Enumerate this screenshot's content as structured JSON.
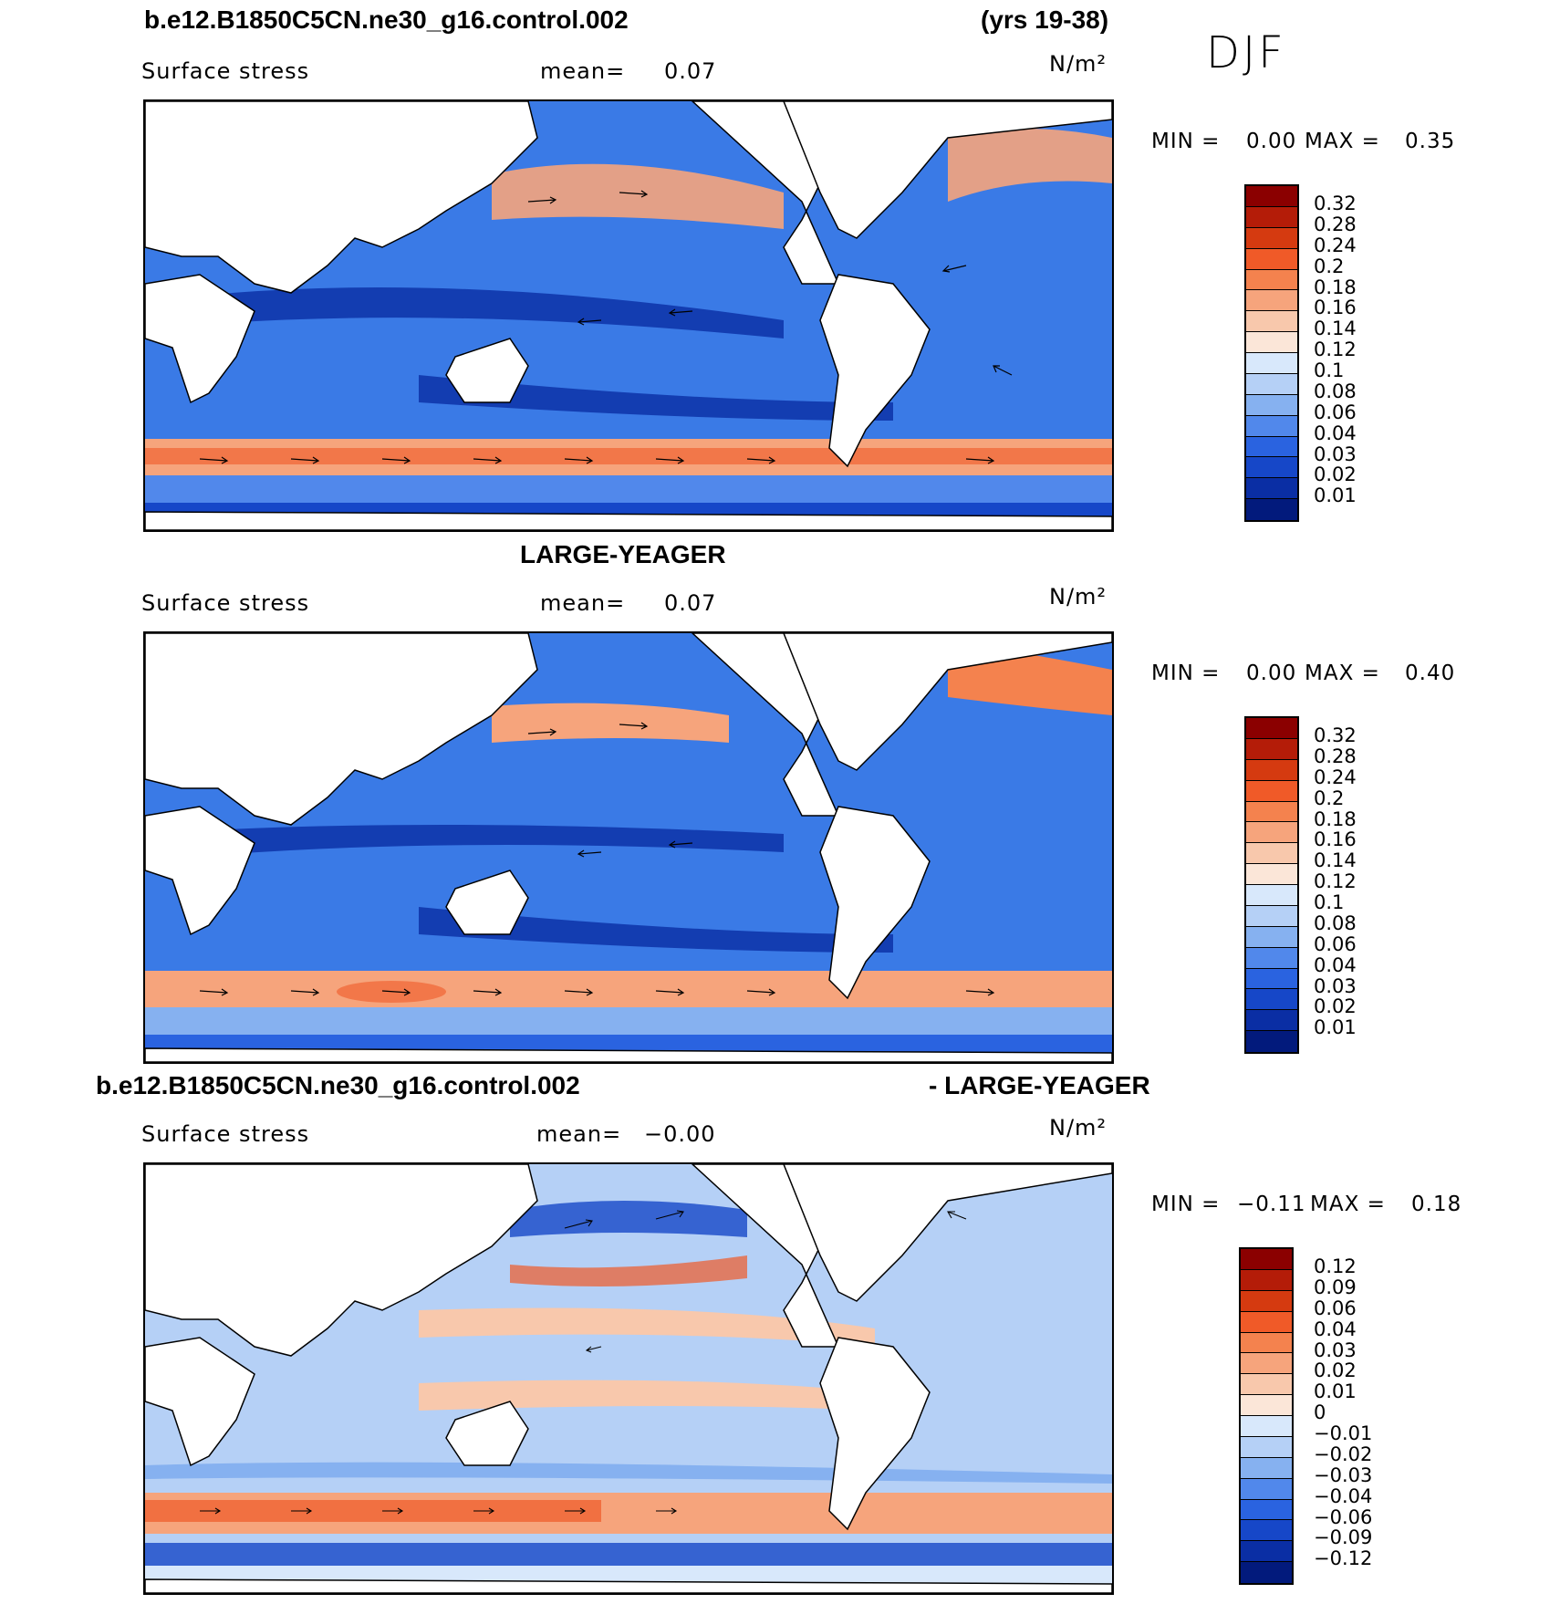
{
  "header": {
    "case_name": "b.e12.B1850C5CN.ne30_g16.control.002",
    "years": "(yrs 19-38)",
    "season": "DJF"
  },
  "panels": [
    {
      "title": "",
      "variable": "Surface stress",
      "mean_label": "mean=",
      "mean_value": "0.07",
      "units": "N/m²",
      "min_label": "MIN =",
      "min_value": "0.00",
      "max_label": "MAX =",
      "max_value": "0.35",
      "colorbar_labels": [
        "0.32",
        "0.28",
        "0.24",
        "0.2",
        "0.18",
        "0.16",
        "0.14",
        "0.12",
        "0.1",
        "0.08",
        "0.06",
        "0.04",
        "0.03",
        "0.02",
        "0.01"
      ],
      "colorbar_colors": [
        "#8b0000",
        "#b41c08",
        "#d53a10",
        "#f05a28",
        "#f4824e",
        "#f6a47c",
        "#f8c8ac",
        "#fbe6d8",
        "#d8e8fb",
        "#b5d0f6",
        "#86b1f0",
        "#5188eb",
        "#2a63e0",
        "#1647c8",
        "#0a2ea4",
        "#021a7c"
      ]
    },
    {
      "title": "LARGE-YEAGER",
      "variable": "Surface stress",
      "mean_label": "mean=",
      "mean_value": "0.07",
      "units": "N/m²",
      "min_label": "MIN =",
      "min_value": "0.00",
      "max_label": "MAX =",
      "max_value": "0.40",
      "colorbar_labels": [
        "0.32",
        "0.28",
        "0.24",
        "0.2",
        "0.18",
        "0.16",
        "0.14",
        "0.12",
        "0.1",
        "0.08",
        "0.06",
        "0.04",
        "0.03",
        "0.02",
        "0.01"
      ],
      "colorbar_colors": [
        "#8b0000",
        "#b41c08",
        "#d53a10",
        "#f05a28",
        "#f4824e",
        "#f6a47c",
        "#f8c8ac",
        "#fbe6d8",
        "#d8e8fb",
        "#b5d0f6",
        "#86b1f0",
        "#5188eb",
        "#2a63e0",
        "#1647c8",
        "#0a2ea4",
        "#021a7c"
      ]
    },
    {
      "title_left": "b.e12.B1850C5CN.ne30_g16.control.002",
      "title_right": "- LARGE-YEAGER",
      "variable": "Surface stress",
      "mean_label": "mean=",
      "mean_value": "−0.00",
      "units": "N/m²",
      "min_label": "MIN =",
      "min_value": "−0.11",
      "max_label": "MAX =",
      "max_value": "0.18",
      "colorbar_labels": [
        "0.12",
        "0.09",
        "0.06",
        "0.04",
        "0.03",
        "0.02",
        "0.01",
        "0",
        "−0.01",
        "−0.02",
        "−0.03",
        "−0.04",
        "−0.06",
        "−0.09",
        "−0.12"
      ],
      "colorbar_colors": [
        "#8b0000",
        "#b41c08",
        "#d53a10",
        "#f05a28",
        "#f4824e",
        "#f6a47c",
        "#f8c8ac",
        "#fbe6d8",
        "#d8e8fb",
        "#b5d0f6",
        "#86b1f0",
        "#5188eb",
        "#2a63e0",
        "#1647c8",
        "#0a2ea4",
        "#021a7c"
      ]
    }
  ]
}
